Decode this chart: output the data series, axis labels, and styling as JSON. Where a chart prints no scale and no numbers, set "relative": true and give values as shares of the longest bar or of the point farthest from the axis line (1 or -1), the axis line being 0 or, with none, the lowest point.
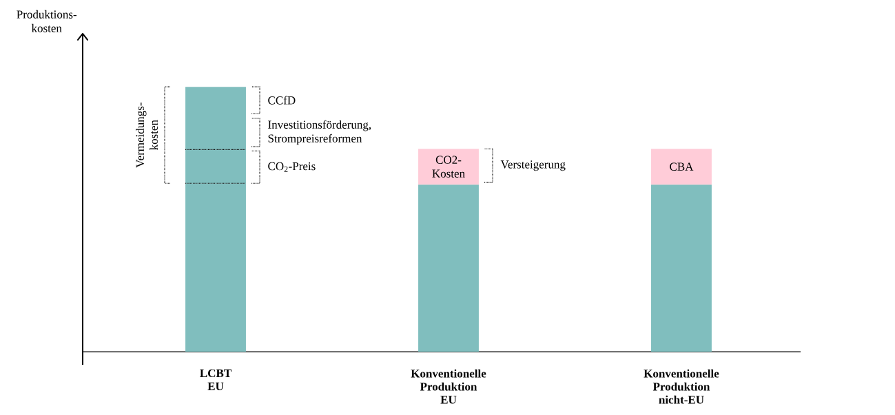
{
  "chart_data": {
    "type": "bar",
    "stacked": true,
    "relative": true,
    "ylabel": "Produktions-kosten",
    "categories": [
      "LCBT\nEU",
      "Konventionelle\nProduktion\nEU",
      "Konventionelle\nProduktion\nnicht-EU"
    ],
    "series": [
      {
        "color": "#80bebe",
        "values": [
          0.636,
          0.631,
          0.631
        ]
      },
      {
        "colors": [
          "#80bebe",
          "#ffccd8",
          "#ffccd8"
        ],
        "values": [
          0.127,
          0.135,
          0.135
        ]
      },
      {
        "color": "#80bebe",
        "values": [
          0.237,
          null,
          null
        ]
      }
    ],
    "annotations": [
      "Vermeidungs-kosten",
      "CCfD",
      "Investitionsförderung, Strompreisreformen",
      "CO$_{2}$-Preis",
      "CO2-Kosten",
      "Versteigerung",
      "CBA"
    ]
  }
}
